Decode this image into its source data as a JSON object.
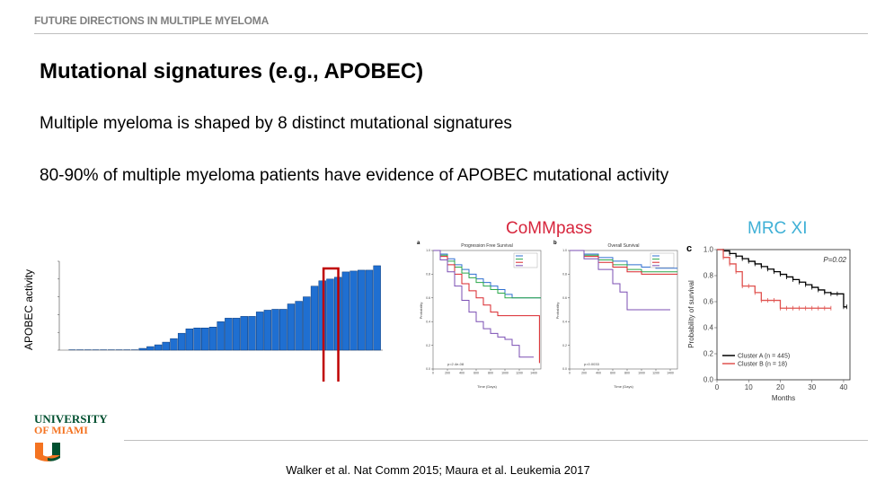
{
  "header": {
    "title": "FUTURE DIRECTIONS IN MULTIPLE MYELOMA"
  },
  "slide": {
    "title": "Mutational signatures (e.g., APOBEC)",
    "bullet1": "Multiple myeloma is shaped by 8 distinct mutational signatures",
    "bullet2": "80-90% of multiple myeloma patients have evidence of APOBEC mutational activity"
  },
  "labels": {
    "commpass": "CoMMpass",
    "mrc": "MRC XI"
  },
  "footer": {
    "citation": "Walker et al. Nat Comm 2015; Maura et al. Leukemia 2017",
    "university_line1": "UNIVERSITY",
    "university_line2": "OF MIAMI"
  },
  "colors": {
    "bar": "#1f6fd1",
    "highlight": "#c00000",
    "uni_green": "#005030",
    "uni_orange": "#f47321"
  },
  "chart_data": [
    {
      "type": "bar",
      "ylabel": "APOBEC activity",
      "values": [
        0.0,
        0.0,
        0.0,
        0.0,
        0.0,
        0.0,
        0.0,
        0.0,
        0.0,
        0.02,
        0.04,
        0.06,
        0.09,
        0.13,
        0.19,
        0.24,
        0.25,
        0.25,
        0.26,
        0.32,
        0.36,
        0.36,
        0.38,
        0.38,
        0.43,
        0.45,
        0.46,
        0.46,
        0.52,
        0.55,
        0.6,
        0.72,
        0.78,
        0.8,
        0.82,
        0.88,
        0.89,
        0.9,
        0.9,
        0.95
      ],
      "highlight_index": 33,
      "ylim": [
        0,
        1
      ]
    },
    {
      "type": "line",
      "panel_letter": "a",
      "title": "Progression Free Survival",
      "xlabel": "Time (Days)",
      "ylabel": "Probability",
      "p_value": "p=2.4e-08",
      "xlim": [
        0,
        1500
      ],
      "ylim": [
        0,
        1
      ],
      "x_ticks": [
        "0",
        "200",
        "400",
        "600",
        "800",
        "1000",
        "1200",
        "1400"
      ],
      "y_ticks": [
        "0.0",
        "0.2",
        "0.4",
        "0.6",
        "0.8",
        "1.0"
      ],
      "series": [
        {
          "color": "#2f6fd0",
          "x": [
            0,
            100,
            200,
            300,
            400,
            500,
            600,
            700,
            800,
            900,
            1000,
            1100,
            1200,
            1300,
            1400,
            1500
          ],
          "y": [
            1,
            0.97,
            0.93,
            0.88,
            0.84,
            0.8,
            0.76,
            0.73,
            0.7,
            0.67,
            0.63,
            0.6,
            0.6,
            0.6,
            0.6,
            0.6
          ]
        },
        {
          "color": "#2aa84a",
          "x": [
            0,
            100,
            200,
            300,
            400,
            500,
            600,
            700,
            800,
            900,
            1000,
            1100,
            1200,
            1300,
            1400,
            1500
          ],
          "y": [
            1,
            0.96,
            0.91,
            0.86,
            0.81,
            0.77,
            0.73,
            0.7,
            0.67,
            0.64,
            0.6,
            0.6,
            0.6,
            0.6,
            0.6,
            0.6
          ]
        },
        {
          "color": "#d9262b",
          "x": [
            0,
            100,
            200,
            300,
            400,
            500,
            600,
            700,
            800,
            900,
            1000,
            1100,
            1200,
            1300,
            1400,
            1480
          ],
          "y": [
            1,
            0.95,
            0.88,
            0.8,
            0.72,
            0.66,
            0.6,
            0.54,
            0.48,
            0.45,
            0.45,
            0.45,
            0.45,
            0.45,
            0.45,
            0.05
          ]
        },
        {
          "color": "#7b4fb3",
          "x": [
            0,
            100,
            200,
            300,
            400,
            500,
            600,
            700,
            800,
            900,
            1000,
            1100,
            1200,
            1300,
            1400
          ],
          "y": [
            1,
            0.92,
            0.82,
            0.7,
            0.58,
            0.48,
            0.4,
            0.34,
            0.3,
            0.27,
            0.25,
            0.2,
            0.1,
            0.1,
            0.1
          ]
        }
      ]
    },
    {
      "type": "line",
      "panel_letter": "b",
      "title": "Overall Survival",
      "xlabel": "Time (Days)",
      "ylabel": "Probability",
      "p_value": "p=0.0033",
      "xlim": [
        0,
        1500
      ],
      "ylim": [
        0,
        1
      ],
      "x_ticks": [
        "0",
        "200",
        "400",
        "600",
        "800",
        "1000",
        "1200",
        "1400"
      ],
      "y_ticks": [
        "0.0",
        "0.2",
        "0.4",
        "0.6",
        "0.8",
        "1.0"
      ],
      "series": [
        {
          "color": "#2f6fd0",
          "x": [
            0,
            200,
            400,
            600,
            800,
            1000,
            1200,
            1400,
            1500
          ],
          "y": [
            1,
            0.97,
            0.94,
            0.91,
            0.88,
            0.86,
            0.85,
            0.85,
            0.85
          ]
        },
        {
          "color": "#2aa84a",
          "x": [
            0,
            200,
            400,
            600,
            800,
            1000,
            1200,
            1400,
            1500
          ],
          "y": [
            1,
            0.96,
            0.92,
            0.88,
            0.84,
            0.82,
            0.82,
            0.82,
            0.82
          ]
        },
        {
          "color": "#d9262b",
          "x": [
            0,
            200,
            400,
            600,
            800,
            1000,
            1200,
            1400,
            1500
          ],
          "y": [
            1,
            0.95,
            0.9,
            0.86,
            0.82,
            0.8,
            0.8,
            0.8,
            0.8
          ]
        },
        {
          "color": "#7b4fb3",
          "x": [
            0,
            200,
            400,
            600,
            700,
            800,
            1000,
            1200,
            1400
          ],
          "y": [
            1,
            0.93,
            0.84,
            0.72,
            0.65,
            0.5,
            0.5,
            0.5,
            0.5
          ]
        }
      ]
    },
    {
      "type": "line",
      "panel_letter": "c",
      "xlabel": "Months",
      "ylabel": "Probability of survival",
      "p_value": "P=0.02",
      "xlim": [
        0,
        42
      ],
      "ylim": [
        0,
        1
      ],
      "x_ticks": [
        "0",
        "10",
        "20",
        "30",
        "40"
      ],
      "y_ticks": [
        "0.0",
        "0.2",
        "0.4",
        "0.6",
        "0.8",
        "1.0"
      ],
      "series": [
        {
          "name": "Cluster A (n = 445)",
          "color": "#000000",
          "x": [
            0,
            2,
            4,
            6,
            8,
            10,
            12,
            14,
            16,
            18,
            20,
            22,
            24,
            26,
            28,
            30,
            32,
            34,
            36,
            38,
            40,
            41
          ],
          "y": [
            1,
            0.99,
            0.97,
            0.95,
            0.93,
            0.91,
            0.89,
            0.87,
            0.85,
            0.83,
            0.81,
            0.79,
            0.77,
            0.75,
            0.73,
            0.71,
            0.69,
            0.67,
            0.66,
            0.66,
            0.56,
            0.56
          ]
        },
        {
          "name": "Cluster B (n = 18)",
          "color": "#e0524f",
          "x": [
            0,
            2,
            4,
            6,
            8,
            10,
            12,
            14,
            16,
            18,
            20,
            22,
            24,
            26,
            28,
            30,
            32,
            34,
            36
          ],
          "y": [
            1,
            0.94,
            0.89,
            0.83,
            0.72,
            0.72,
            0.67,
            0.61,
            0.61,
            0.61,
            0.55,
            0.55,
            0.55,
            0.55,
            0.55,
            0.55,
            0.55,
            0.55,
            0.55
          ]
        }
      ]
    }
  ]
}
